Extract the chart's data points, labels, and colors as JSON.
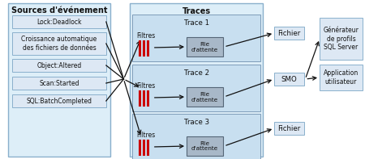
{
  "bg_color": "#ffffff",
  "panel_fill": "#ddeef8",
  "panel_border": "#8ab0cc",
  "src_box_fill": "#dde8f4",
  "src_box_border": "#8ab0cc",
  "trace_fill": "#c8dff0",
  "trace_border": "#7090b0",
  "queue_fill": "#a8b8c8",
  "queue_border": "#556677",
  "out_box_fill": "#dde8f4",
  "out_box_border": "#8ab0cc",
  "arrow_color": "#111111",
  "red_bar": "#cc0000",
  "title": "Sources d'événement",
  "traces_title": "Traces",
  "sources": [
    "Lock:Deadlock",
    "Croissance automatique\ndes fichiers de données",
    "Object:Altered",
    "Scan:Started",
    "SQL:BatchCompleted"
  ],
  "trace_labels": [
    "Trace 1",
    "Trace 2",
    "Trace 3"
  ],
  "output_labels": [
    "Fichier",
    "SMO",
    "Fichier"
  ],
  "right_boxes": [
    "Générateur\nde profils\nSQL Server",
    "Application\nutilisateur"
  ],
  "title_fontsize": 7.0,
  "label_fontsize": 6.2,
  "small_fontsize": 5.5
}
